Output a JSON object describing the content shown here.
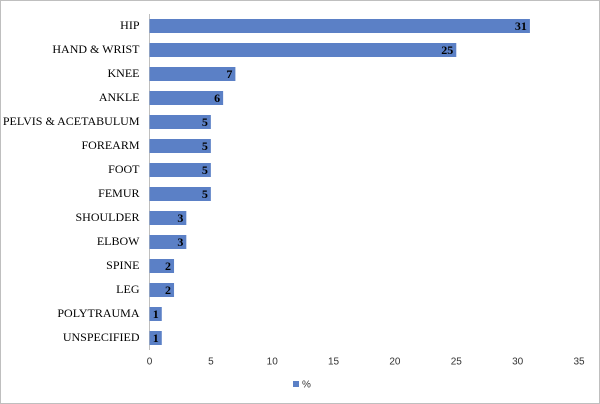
{
  "chart_data": {
    "type": "bar",
    "orientation": "horizontal",
    "categories": [
      "HIP",
      "HAND & WRIST",
      "KNEE",
      "ANKLE",
      "PELVIS & ACETABULUM",
      "FOREARM",
      "FOOT",
      "FEMUR",
      "SHOULDER",
      "ELBOW",
      "SPINE",
      "LEG",
      "POLYTRAUMA",
      "UNSPECIFIED"
    ],
    "series": [
      {
        "name": "%",
        "color": "#5b80c6",
        "values": [
          31,
          25,
          7,
          6,
          5,
          5,
          5,
          5,
          3,
          3,
          2,
          2,
          1,
          1
        ]
      }
    ],
    "xlim": [
      0,
      35
    ],
    "xticks": [
      0,
      5,
      10,
      15,
      20,
      25,
      30,
      35
    ],
    "grid": false,
    "legend": "bottom"
  }
}
